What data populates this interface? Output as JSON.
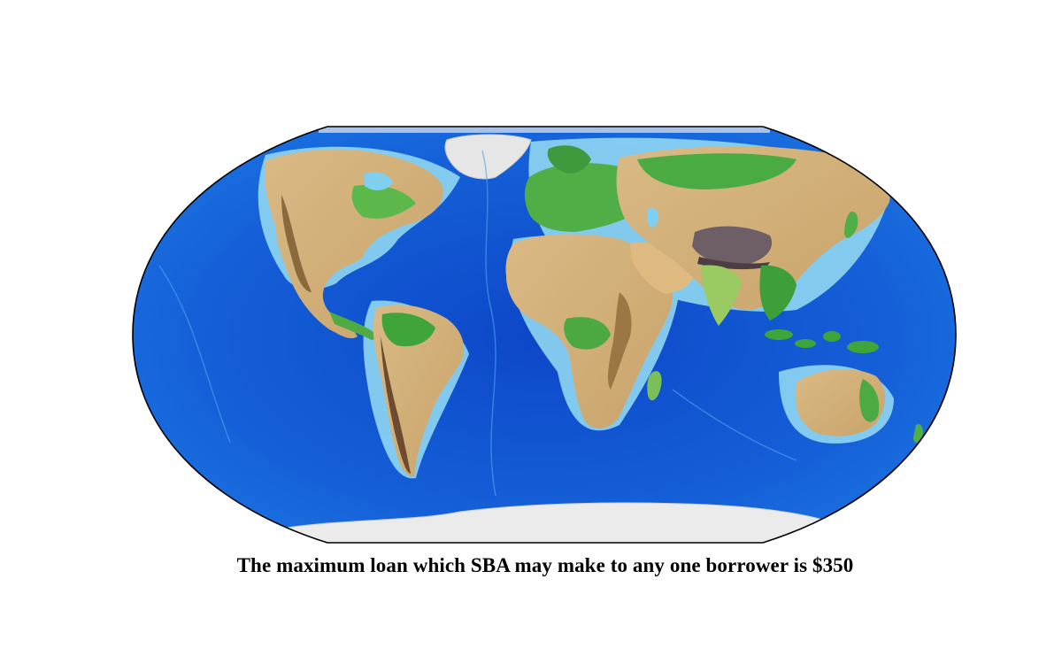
{
  "map": {
    "projection": "robinson",
    "relief": "shaded-topography-bathymetry",
    "colors": {
      "deep_ocean": "#0a3fc4",
      "ocean": "#1a6fe0",
      "shelf": "#7fd0f0",
      "shallow": "#b7e6f6",
      "lowland": "#3aa63a",
      "plain": "#9fd36a",
      "upland": "#e2c48f",
      "highland": "#b88c4a",
      "mountain": "#7a5a3a",
      "peak": "#6e5f66",
      "ice": "#ececec",
      "outline": "#000000"
    }
  },
  "caption": {
    "text": "The maximum loan which SBA may make to any one borrower is $350"
  }
}
